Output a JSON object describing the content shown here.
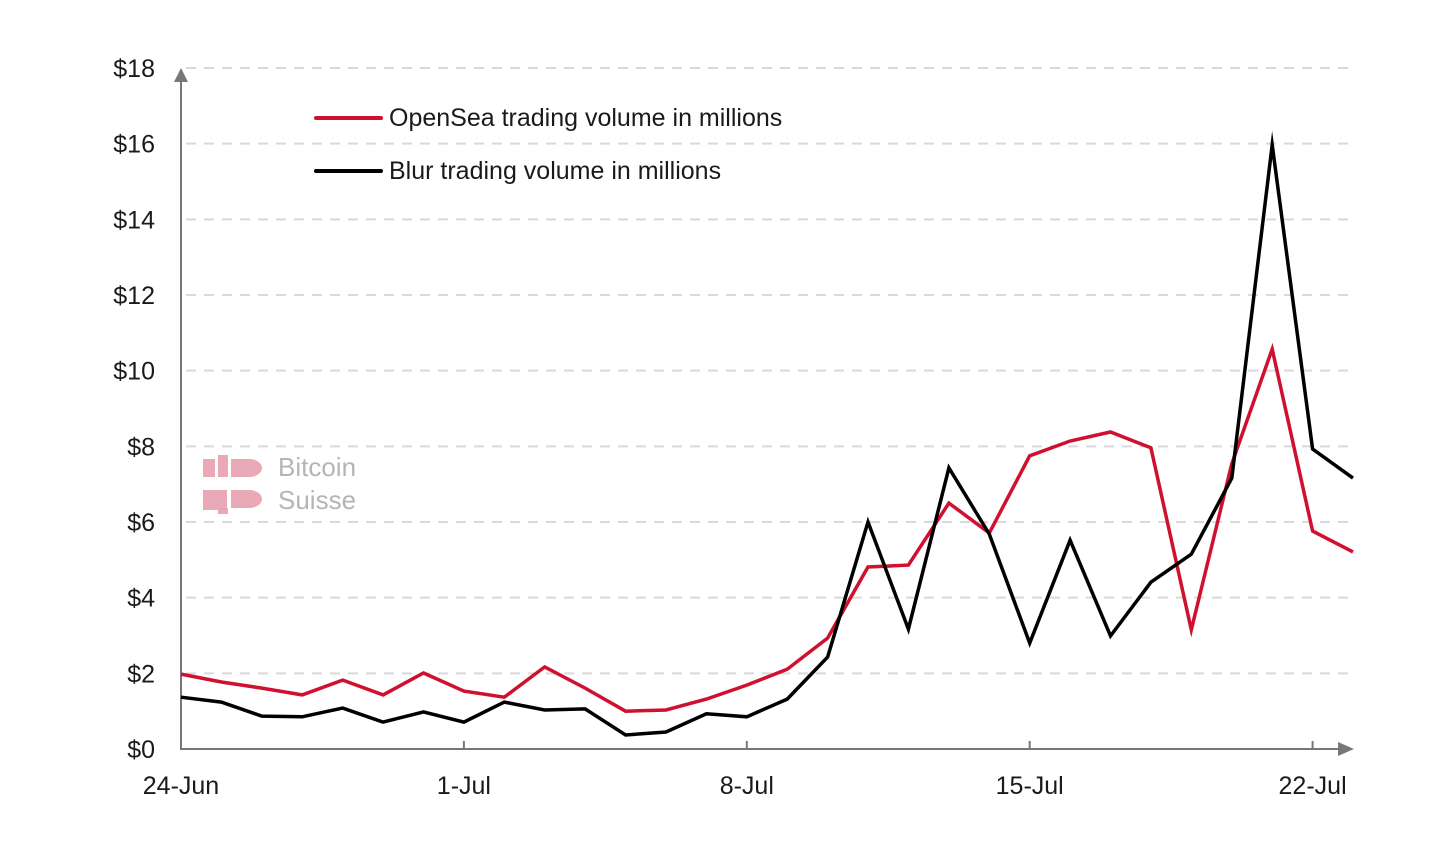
{
  "chart_data": {
    "type": "line",
    "title": "",
    "xlabel": "",
    "ylabel": "",
    "ylim": [
      0,
      18
    ],
    "yticks": [
      0,
      2,
      4,
      6,
      8,
      10,
      12,
      14,
      16,
      18
    ],
    "ytick_labels": [
      "$0",
      "$2",
      "$4",
      "$6",
      "$8",
      "$10",
      "$12",
      "$14",
      "$16",
      "$18"
    ],
    "x": [
      "24-Jun",
      "25-Jun",
      "26-Jun",
      "27-Jun",
      "28-Jun",
      "29-Jun",
      "30-Jun",
      "1-Jul",
      "2-Jul",
      "3-Jul",
      "4-Jul",
      "5-Jul",
      "6-Jul",
      "7-Jul",
      "8-Jul",
      "9-Jul",
      "10-Jul",
      "11-Jul",
      "12-Jul",
      "13-Jul",
      "14-Jul",
      "15-Jul",
      "16-Jul",
      "17-Jul",
      "18-Jul",
      "19-Jul",
      "20-Jul",
      "21-Jul",
      "22-Jul",
      "23-Jul"
    ],
    "xtick_labels": [
      "24-Jun",
      "1-Jul",
      "8-Jul",
      "15-Jul",
      "22-Jul"
    ],
    "xtick_indices": [
      0,
      7,
      14,
      21,
      28
    ],
    "grid": "horizontal dashed",
    "legend_position": "top-left",
    "series": [
      {
        "name": "OpenSea trading volume in millions",
        "color": "#d0102f",
        "values": [
          1.98,
          1.77,
          1.61,
          1.43,
          1.82,
          1.43,
          2.01,
          1.53,
          1.37,
          2.17,
          1.61,
          1.0,
          1.03,
          1.32,
          1.69,
          2.11,
          2.93,
          4.81,
          4.86,
          6.5,
          5.71,
          7.75,
          8.14,
          8.38,
          7.96,
          3.15,
          7.54,
          10.57,
          5.76,
          5.21
        ]
      },
      {
        "name": "Blur trading volume in millions",
        "color": "#000000",
        "values": [
          1.37,
          1.24,
          0.87,
          0.85,
          1.08,
          0.71,
          0.98,
          0.71,
          1.24,
          1.03,
          1.06,
          0.37,
          0.45,
          0.93,
          0.85,
          1.32,
          2.43,
          6.0,
          3.17,
          7.43,
          5.68,
          2.8,
          5.52,
          2.99,
          4.41,
          5.15,
          7.16,
          15.97,
          7.93,
          7.16
        ]
      }
    ]
  },
  "watermark": {
    "line1": "Bitcoin",
    "line2": "Suisse",
    "logo_color": "#e8a0ae"
  },
  "colors": {
    "axis": "#777777",
    "grid": "#d9d9d9"
  }
}
